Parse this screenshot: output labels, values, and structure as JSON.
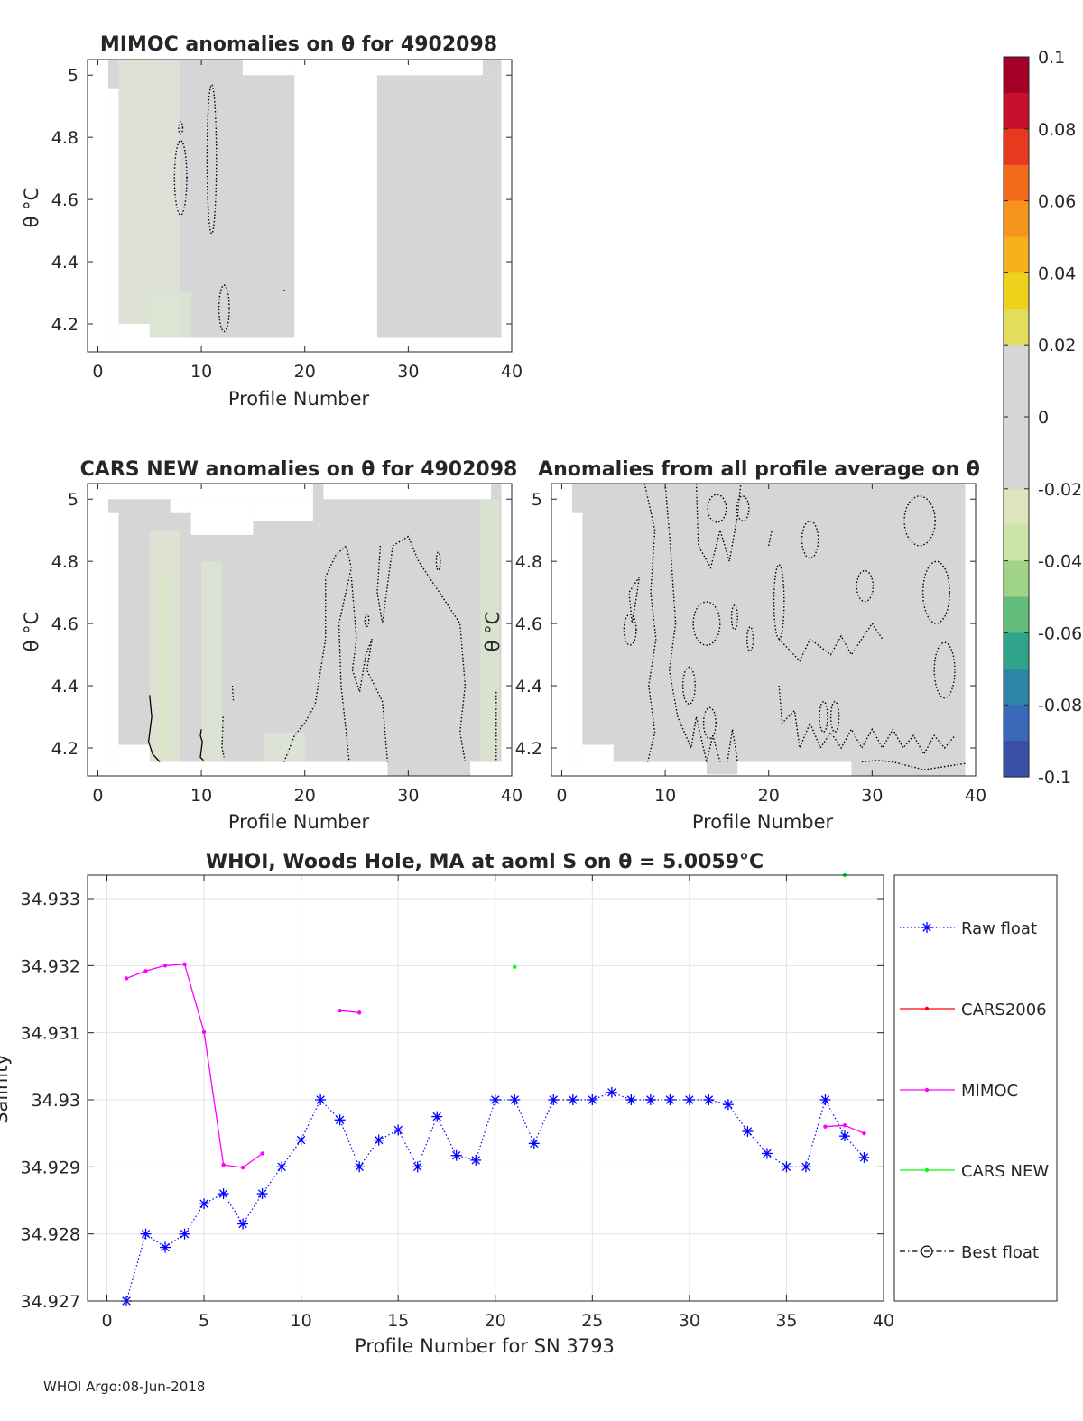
{
  "panels": {
    "mimoc": {
      "title": "MIMOC anomalies on θ  for 4902098",
      "xlabel": "Profile Number",
      "ylabel": "θ °C",
      "xticks": [
        "0",
        "10",
        "20",
        "30",
        "40"
      ],
      "yticks": [
        "5",
        "4.8",
        "4.6",
        "4.4",
        "4.2"
      ]
    },
    "cars": {
      "title": "CARS NEW anomalies on θ for 4902098",
      "xlabel": "Profile Number",
      "ylabel": "θ °C",
      "xticks": [
        "0",
        "10",
        "20",
        "30",
        "40"
      ],
      "yticks": [
        "5",
        "4.8",
        "4.6",
        "4.4",
        "4.2"
      ]
    },
    "avg": {
      "title": "Anomalies from all profile average on θ",
      "xlabel": "Profile Number",
      "xticks": [
        "0",
        "10",
        "20",
        "30",
        "40"
      ],
      "yticks": [
        "5",
        "4.8",
        "4.6",
        "4.4",
        "4.2"
      ]
    }
  },
  "colorbar": {
    "ticks": [
      "0.1",
      "0.08",
      "0.06",
      "0.04",
      "0.02",
      "0",
      "-0.02",
      "-0.04",
      "-0.06",
      "-0.08",
      "-0.1"
    ]
  },
  "footer": "WHOI Argo:08-Jun-2018",
  "colors": {
    "raw_float": "#0000ff",
    "cars2006": "#ff0000",
    "mimoc": "#ff00ff",
    "cars_new": "#00ff00",
    "best_float": "#000000",
    "field_background": "#d6d6d6"
  },
  "chart_data": [
    {
      "type": "heatmap",
      "title": "MIMOC anomalies on θ  for 4902098",
      "xlabel": "Profile Number",
      "ylabel": "θ °C",
      "xlim": [
        -1,
        40
      ],
      "ylim": [
        4.11,
        5.05
      ],
      "clim": [
        -0.1,
        0.1
      ]
    },
    {
      "type": "heatmap",
      "title": "CARS NEW anomalies on θ for 4902098",
      "xlabel": "Profile Number",
      "ylabel": "θ °C",
      "xlim": [
        -1,
        40
      ],
      "ylim": [
        4.11,
        5.05
      ],
      "clim": [
        -0.1,
        0.1
      ]
    },
    {
      "type": "heatmap",
      "title": "Anomalies from all profile average on θ",
      "xlabel": "Profile Number",
      "xlim": [
        -1,
        40
      ],
      "ylim": [
        4.11,
        5.05
      ],
      "clim": [
        -0.1,
        0.1
      ]
    },
    {
      "type": "line",
      "title": "WHOI, Woods Hole, MA at aoml S on θ = 5.0059°C",
      "xlabel": "Profile Number for SN 3793",
      "ylabel": "Salinity",
      "xlim": [
        -1,
        40
      ],
      "ylim": [
        34.927,
        34.93335
      ],
      "xticks": [
        "0",
        "5",
        "10",
        "15",
        "20",
        "25",
        "30",
        "35",
        "40"
      ],
      "yticks": [
        "34.927",
        "34.928",
        "34.929",
        "34.93",
        "34.931",
        "34.932",
        "34.933"
      ],
      "grid": true,
      "legend_placement": "outside-right",
      "series": [
        {
          "name": "Raw float",
          "x": [
            1,
            2,
            3,
            4,
            5,
            6,
            7,
            8,
            9,
            10,
            11,
            12,
            13,
            14,
            15,
            16,
            17,
            18,
            19,
            20,
            21,
            22,
            23,
            24,
            25,
            26,
            27,
            28,
            29,
            30,
            31,
            32,
            33,
            34,
            35,
            36,
            37,
            38,
            39
          ],
          "values": [
            34.927,
            34.928,
            34.9278,
            34.928,
            34.92845,
            34.9286,
            34.92815,
            34.9286,
            34.929,
            34.9294,
            34.93,
            34.9297,
            34.929,
            34.9294,
            34.92955,
            34.929,
            34.92975,
            34.92917,
            34.9291,
            34.93,
            34.93,
            34.92935,
            34.93,
            34.93,
            34.93,
            34.93011,
            34.93,
            34.93,
            34.93,
            34.93,
            34.93,
            34.92993,
            34.92953,
            34.9292,
            34.929,
            34.929,
            34.93,
            34.92946,
            34.92914
          ]
        },
        {
          "name": "CARS2006",
          "x": [],
          "values": []
        },
        {
          "name": "MIMOC",
          "segments": [
            {
              "x": [
                1,
                2,
                3,
                4,
                5,
                6,
                7,
                8
              ],
              "values": [
                34.93181,
                34.93192,
                34.932,
                34.93202,
                34.93101,
                34.92903,
                34.92899,
                34.9292
              ]
            },
            {
              "x": [
                12,
                13
              ],
              "values": [
                34.93133,
                34.9313
              ]
            },
            {
              "x": [
                37,
                38,
                39
              ],
              "values": [
                34.9296,
                34.92962,
                34.9295
              ]
            }
          ]
        },
        {
          "name": "CARS NEW",
          "x": [
            21,
            38
          ],
          "values": [
            34.93198,
            34.93335
          ]
        },
        {
          "name": "Best float",
          "x": [],
          "values": []
        }
      ]
    }
  ]
}
